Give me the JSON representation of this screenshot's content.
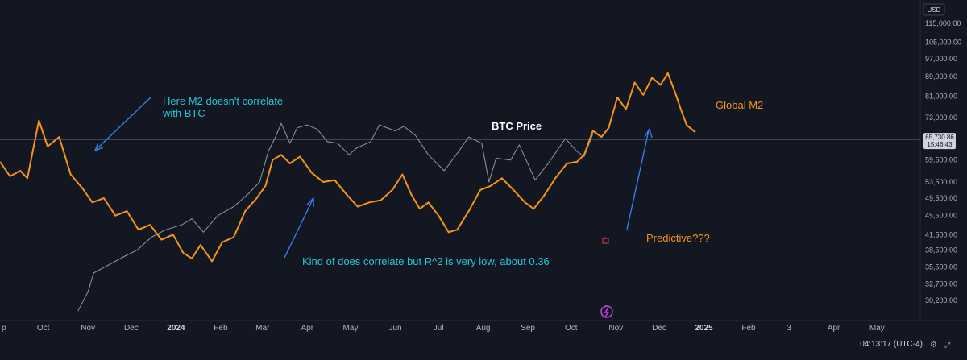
{
  "currency_button": "USD",
  "clock": "04:13:17 (UTC-4)",
  "price_tag": {
    "value": "65,730.86",
    "countdown": "15:46:43"
  },
  "y_ticks": [
    "115,000.00",
    "105,000.00",
    "97,000.00",
    "89,000.00",
    "81,000.00",
    "73,000.00",
    "65,730.86",
    "59,500.00",
    "53,500.00",
    "49,500.00",
    "45,500.00",
    "41,500.00",
    "38,500.00",
    "35,500.00",
    "32,700.00",
    "30,200.00"
  ],
  "x_ticks": [
    "p",
    "Oct",
    "Nov",
    "Dec",
    "2024",
    "Feb",
    "Mar",
    "Apr",
    "May",
    "Jun",
    "Jul",
    "Aug",
    "Sep",
    "Oct",
    "Nov",
    "Dec",
    "2025",
    "Feb",
    "3",
    "Apr",
    "May"
  ],
  "annotations": {
    "m2_no_correlate": "Here M2 doesn't correlate with BTC",
    "kind_of_correlate": "Kind of does correlate but R^2 is very low, about 0.36",
    "btc_price": "BTC Price",
    "global_m2": "Global M2",
    "predictive": "Predictive???"
  },
  "colors": {
    "background": "#131722",
    "btc_line": "#9598a1",
    "m2_line": "#f7931a",
    "annotation_blue": "#3b82f6",
    "annotation_cyan": "#26c6da",
    "annotation_orange": "#f7931a"
  },
  "chart_data": {
    "type": "line",
    "y_scale": "log",
    "ylim": [
      28500,
      122000
    ],
    "x_range": [
      "2023-09-01",
      "2025-05-31"
    ],
    "series": [
      {
        "name": "BTC Price",
        "points": [
          [
            "2023-10-25",
            28700
          ],
          [
            "2023-11-01",
            31500
          ],
          [
            "2023-11-05",
            34500
          ],
          [
            "2023-11-15",
            35800
          ],
          [
            "2023-11-25",
            37200
          ],
          [
            "2023-12-05",
            38500
          ],
          [
            "2023-12-15",
            41000
          ],
          [
            "2023-12-25",
            42500
          ],
          [
            "2024-01-05",
            43500
          ],
          [
            "2024-01-12",
            44800
          ],
          [
            "2024-01-20",
            42000
          ],
          [
            "2024-01-30",
            45500
          ],
          [
            "2024-02-10",
            47500
          ],
          [
            "2024-02-20",
            50500
          ],
          [
            "2024-02-28",
            53500
          ],
          [
            "2024-03-05",
            62000
          ],
          [
            "2024-03-10",
            66500
          ],
          [
            "2024-03-14",
            71000
          ],
          [
            "2024-03-20",
            64500
          ],
          [
            "2024-03-25",
            69500
          ],
          [
            "2024-04-01",
            70500
          ],
          [
            "2024-04-08",
            69000
          ],
          [
            "2024-04-15",
            65000
          ],
          [
            "2024-04-22",
            64500
          ],
          [
            "2024-04-30",
            61000
          ],
          [
            "2024-05-05",
            63000
          ],
          [
            "2024-05-15",
            65000
          ],
          [
            "2024-05-21",
            70500
          ],
          [
            "2024-06-01",
            68500
          ],
          [
            "2024-06-07",
            70000
          ],
          [
            "2024-06-15",
            67000
          ],
          [
            "2024-06-24",
            61000
          ],
          [
            "2024-07-05",
            56500
          ],
          [
            "2024-07-15",
            62000
          ],
          [
            "2024-07-22",
            66500
          ],
          [
            "2024-07-31",
            64500
          ],
          [
            "2024-08-05",
            53500
          ],
          [
            "2024-08-10",
            60000
          ],
          [
            "2024-08-20",
            59500
          ],
          [
            "2024-08-26",
            64000
          ],
          [
            "2024-09-06",
            54000
          ],
          [
            "2024-09-15",
            58500
          ],
          [
            "2024-09-27",
            66000
          ],
          [
            "2024-10-05",
            62000
          ],
          [
            "2024-10-10",
            60500
          ],
          [
            "2024-10-16",
            67500
          ]
        ]
      },
      {
        "name": "Global M2",
        "points": [
          [
            "2023-09-01",
            59000
          ],
          [
            "2023-09-08",
            55000
          ],
          [
            "2023-09-15",
            56500
          ],
          [
            "2023-09-20",
            54500
          ],
          [
            "2023-09-28",
            72000
          ],
          [
            "2023-10-04",
            63500
          ],
          [
            "2023-10-12",
            66500
          ],
          [
            "2023-10-20",
            55500
          ],
          [
            "2023-10-28",
            52000
          ],
          [
            "2023-11-04",
            48500
          ],
          [
            "2023-11-12",
            49500
          ],
          [
            "2023-11-20",
            45500
          ],
          [
            "2023-11-28",
            46500
          ],
          [
            "2023-12-06",
            42500
          ],
          [
            "2023-12-14",
            43500
          ],
          [
            "2023-12-22",
            40500
          ],
          [
            "2023-12-30",
            41500
          ],
          [
            "2024-01-06",
            38000
          ],
          [
            "2024-01-12",
            37000
          ],
          [
            "2024-01-18",
            39500
          ],
          [
            "2024-01-26",
            36500
          ],
          [
            "2024-02-02",
            40000
          ],
          [
            "2024-02-10",
            41000
          ],
          [
            "2024-02-18",
            46500
          ],
          [
            "2024-02-26",
            49500
          ],
          [
            "2024-03-03",
            52500
          ],
          [
            "2024-03-08",
            59500
          ],
          [
            "2024-03-14",
            61000
          ],
          [
            "2024-03-20",
            58500
          ],
          [
            "2024-03-27",
            60500
          ],
          [
            "2024-04-04",
            56000
          ],
          [
            "2024-04-12",
            53500
          ],
          [
            "2024-04-20",
            54000
          ],
          [
            "2024-04-28",
            50500
          ],
          [
            "2024-05-06",
            47500
          ],
          [
            "2024-05-14",
            48500
          ],
          [
            "2024-05-22",
            49000
          ],
          [
            "2024-05-30",
            51500
          ],
          [
            "2024-06-06",
            55500
          ],
          [
            "2024-06-12",
            50500
          ],
          [
            "2024-06-18",
            47000
          ],
          [
            "2024-06-24",
            48500
          ],
          [
            "2024-07-01",
            45500
          ],
          [
            "2024-07-08",
            42000
          ],
          [
            "2024-07-14",
            42500
          ],
          [
            "2024-07-22",
            46500
          ],
          [
            "2024-07-30",
            51500
          ],
          [
            "2024-08-06",
            52500
          ],
          [
            "2024-08-14",
            54500
          ],
          [
            "2024-08-22",
            51500
          ],
          [
            "2024-08-30",
            48500
          ],
          [
            "2024-09-05",
            47000
          ],
          [
            "2024-09-12",
            50000
          ],
          [
            "2024-09-20",
            54500
          ],
          [
            "2024-09-28",
            58500
          ],
          [
            "2024-10-05",
            59000
          ],
          [
            "2024-10-10",
            61000
          ],
          [
            "2024-10-16",
            68500
          ],
          [
            "2024-10-22",
            66500
          ],
          [
            "2024-10-27",
            69500
          ],
          [
            "2024-11-02",
            80500
          ],
          [
            "2024-11-08",
            76000
          ],
          [
            "2024-11-14",
            86500
          ],
          [
            "2024-11-20",
            81500
          ],
          [
            "2024-11-26",
            88500
          ],
          [
            "2024-12-02",
            85500
          ],
          [
            "2024-12-07",
            90500
          ],
          [
            "2024-12-12",
            82500
          ],
          [
            "2024-12-16",
            76000
          ],
          [
            "2024-12-20",
            70500
          ],
          [
            "2024-12-26",
            68000
          ]
        ]
      }
    ]
  }
}
